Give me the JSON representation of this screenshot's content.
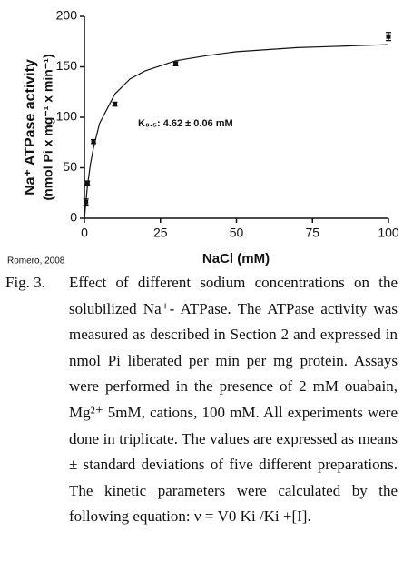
{
  "chart_data": {
    "type": "scatter",
    "x_label": "NaCl (mM)",
    "y_label": [
      "Na⁺ ATPase activity",
      "(nmol Pi x mg⁻¹ x min⁻¹)"
    ],
    "annotation": "K₀.₅: 4.62 ± 0.06 mM",
    "note": "Romero, 2008",
    "x": [
      0.5,
      1,
      3,
      10,
      30,
      100
    ],
    "values": [
      16,
      35,
      76,
      113,
      153,
      180
    ],
    "errors": [
      3,
      2,
      2,
      2,
      2,
      4
    ],
    "fit_curve": {
      "x": [
        0,
        1,
        2,
        3,
        5,
        10,
        15,
        20,
        30,
        40,
        50,
        60,
        70,
        80,
        90,
        100
      ],
      "values": [
        0,
        32,
        54,
        70,
        94,
        123,
        138,
        146,
        156,
        161,
        165,
        167,
        169,
        170,
        171,
        172
      ]
    },
    "color": "#111111",
    "xlim": [
      0,
      100
    ],
    "xticks": [
      0,
      25,
      50,
      75,
      100
    ],
    "ylim": [
      0,
      200
    ],
    "yticks": [
      0,
      50,
      100,
      150,
      200
    ]
  },
  "caption": {
    "label": "Fig. 3.",
    "text": "Effect of different sodium concentrations on the solubilized Na⁺- ATPase. The ATPase activity was measured as described in Section 2 and expressed in nmol Pi liberated per min per mg protein. Assays were performed in the presence of 2 mM ouabain, Mg²⁺ 5mM, cations, 100 mM. All experiments were done in triplicate. The values are expressed as means ± standard deviations of five different preparations. The kinetic parameters were calculated by the following equation: ν = V0 Ki /Ki +[I]."
  }
}
